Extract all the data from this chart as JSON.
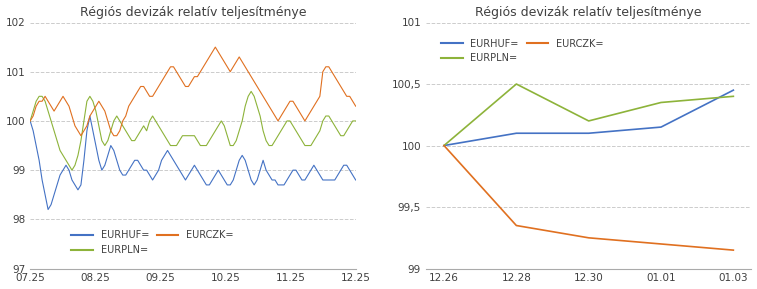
{
  "title": "Régiós devizák relatív teljesítménye",
  "colors": {
    "EURHUF": "#4472c4",
    "EURPLN": "#8db33a",
    "EURCZK": "#e07020"
  },
  "left_chart": {
    "xlabels": [
      "07.25",
      "08.25",
      "09.25",
      "10.25",
      "11.25",
      "12.25"
    ],
    "ylim": [
      97,
      102
    ],
    "yticks": [
      97,
      98,
      99,
      100,
      101,
      102
    ],
    "EURHUF": [
      100.0,
      99.8,
      99.5,
      99.2,
      98.8,
      98.5,
      98.2,
      98.3,
      98.5,
      98.7,
      98.9,
      99.0,
      99.1,
      99.0,
      98.8,
      98.7,
      98.6,
      98.7,
      99.2,
      99.8,
      100.1,
      99.8,
      99.5,
      99.2,
      99.0,
      99.1,
      99.3,
      99.5,
      99.4,
      99.2,
      99.0,
      98.9,
      98.9,
      99.0,
      99.1,
      99.2,
      99.2,
      99.1,
      99.0,
      99.0,
      98.9,
      98.8,
      98.9,
      99.0,
      99.2,
      99.3,
      99.4,
      99.3,
      99.2,
      99.1,
      99.0,
      98.9,
      98.8,
      98.9,
      99.0,
      99.1,
      99.0,
      98.9,
      98.8,
      98.7,
      98.7,
      98.8,
      98.9,
      99.0,
      98.9,
      98.8,
      98.7,
      98.7,
      98.8,
      99.0,
      99.2,
      99.3,
      99.2,
      99.0,
      98.8,
      98.7,
      98.8,
      99.0,
      99.2,
      99.0,
      98.9,
      98.8,
      98.8,
      98.7,
      98.7,
      98.7,
      98.8,
      98.9,
      99.0,
      99.0,
      98.9,
      98.8,
      98.8,
      98.9,
      99.0,
      99.1,
      99.0,
      98.9,
      98.8,
      98.8,
      98.8,
      98.8,
      98.8,
      98.9,
      99.0,
      99.1,
      99.1,
      99.0,
      98.9,
      98.8
    ],
    "EURPLN": [
      100.0,
      100.2,
      100.4,
      100.5,
      100.5,
      100.4,
      100.2,
      100.0,
      99.8,
      99.6,
      99.4,
      99.3,
      99.2,
      99.1,
      99.0,
      99.1,
      99.3,
      99.6,
      100.0,
      100.4,
      100.5,
      100.4,
      100.2,
      99.9,
      99.6,
      99.5,
      99.6,
      99.8,
      100.0,
      100.1,
      100.0,
      99.9,
      99.8,
      99.7,
      99.6,
      99.6,
      99.7,
      99.8,
      99.9,
      99.8,
      100.0,
      100.1,
      100.0,
      99.9,
      99.8,
      99.7,
      99.6,
      99.5,
      99.5,
      99.5,
      99.6,
      99.7,
      99.7,
      99.7,
      99.7,
      99.7,
      99.6,
      99.5,
      99.5,
      99.5,
      99.6,
      99.7,
      99.8,
      99.9,
      100.0,
      99.9,
      99.7,
      99.5,
      99.5,
      99.6,
      99.8,
      100.0,
      100.3,
      100.5,
      100.6,
      100.5,
      100.3,
      100.1,
      99.8,
      99.6,
      99.5,
      99.5,
      99.6,
      99.7,
      99.8,
      99.9,
      100.0,
      100.0,
      99.9,
      99.8,
      99.7,
      99.6,
      99.5,
      99.5,
      99.5,
      99.6,
      99.7,
      99.8,
      100.0,
      100.1,
      100.1,
      100.0,
      99.9,
      99.8,
      99.7,
      99.7,
      99.8,
      99.9,
      100.0,
      100.0
    ],
    "EURCZK": [
      100.0,
      100.1,
      100.3,
      100.4,
      100.4,
      100.5,
      100.4,
      100.3,
      100.2,
      100.3,
      100.4,
      100.5,
      100.4,
      100.3,
      100.1,
      99.9,
      99.8,
      99.7,
      99.8,
      99.9,
      100.1,
      100.2,
      100.3,
      100.4,
      100.3,
      100.2,
      100.0,
      99.8,
      99.7,
      99.7,
      99.8,
      100.0,
      100.1,
      100.3,
      100.4,
      100.5,
      100.6,
      100.7,
      100.7,
      100.6,
      100.5,
      100.5,
      100.6,
      100.7,
      100.8,
      100.9,
      101.0,
      101.1,
      101.1,
      101.0,
      100.9,
      100.8,
      100.7,
      100.7,
      100.8,
      100.9,
      100.9,
      101.0,
      101.1,
      101.2,
      101.3,
      101.4,
      101.5,
      101.4,
      101.3,
      101.2,
      101.1,
      101.0,
      101.1,
      101.2,
      101.3,
      101.2,
      101.1,
      101.0,
      100.9,
      100.8,
      100.7,
      100.6,
      100.5,
      100.4,
      100.3,
      100.2,
      100.1,
      100.0,
      100.1,
      100.2,
      100.3,
      100.4,
      100.4,
      100.3,
      100.2,
      100.1,
      100.0,
      100.1,
      100.2,
      100.3,
      100.4,
      100.5,
      101.0,
      101.1,
      101.1,
      101.0,
      100.9,
      100.8,
      100.7,
      100.6,
      100.5,
      100.5,
      100.4,
      100.3
    ]
  },
  "right_chart": {
    "xlabels": [
      "12.26",
      "12.28",
      "12.30",
      "01.01",
      "01.03"
    ],
    "ylim": [
      99.0,
      101.0
    ],
    "yticks": [
      99.0,
      99.5,
      100.0,
      100.5,
      101.0
    ],
    "ytick_labels": [
      "99",
      "99,5",
      "100",
      "100,5",
      "101"
    ],
    "x_vals": [
      0,
      2,
      4,
      6,
      8
    ],
    "EURHUF": [
      100.0,
      100.1,
      100.1,
      100.15,
      100.45
    ],
    "EURPLN": [
      100.0,
      100.5,
      100.2,
      100.35,
      100.4
    ],
    "EURCZK": [
      100.0,
      99.35,
      99.25,
      99.2,
      99.15
    ]
  },
  "background_color": "#ffffff",
  "grid_color": "#cccccc",
  "font_color": "#404040"
}
